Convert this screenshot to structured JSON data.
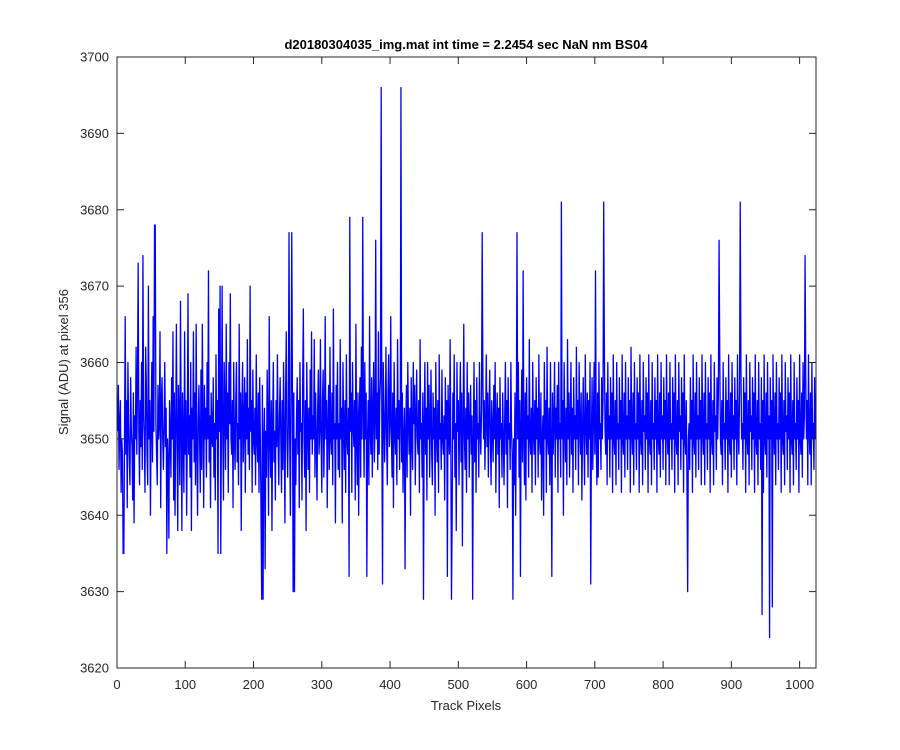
{
  "chart_data": {
    "type": "line",
    "title": "d20180304035_img.mat int time = 2.2454 sec  NaN nm BS04",
    "xlabel": "Track Pixels",
    "ylabel": "Signal (ADU) at pixel 356",
    "xlim": [
      0,
      1024
    ],
    "ylim": [
      3620,
      3700
    ],
    "xticks": [
      0,
      100,
      200,
      300,
      400,
      500,
      600,
      700,
      800,
      900,
      1000
    ],
    "yticks": [
      3620,
      3630,
      3640,
      3650,
      3660,
      3670,
      3680,
      3690,
      3700
    ],
    "grid": false,
    "legend": "none",
    "line_color": "#0000ff",
    "series": [
      {
        "x_start": 1,
        "x_step": 1,
        "noise_level": 3651.5,
        "values": [
          3651,
          3657,
          3646,
          3652,
          3655,
          3643,
          3650,
          3648,
          3654,
          3635,
          3650,
          3666,
          3648,
          3655,
          3641,
          3660,
          3652,
          3647,
          3644,
          3658,
          3651,
          3649,
          3642,
          3656,
          3639,
          3653,
          3650,
          3662,
          3648,
          3657,
          3673,
          3651,
          3644,
          3655,
          3649,
          3660,
          3646,
          3674,
          3653,
          3650,
          3643,
          3662,
          3657,
          3648,
          3644,
          3670,
          3650,
          3655,
          3640,
          3652,
          3660,
          3647,
          3666,
          3651,
          3655,
          3678,
          3652,
          3648,
          3644,
          3657,
          3650,
          3652,
          3664,
          3641,
          3655,
          3658,
          3650,
          3646,
          3652,
          3660,
          3649,
          3654,
          3635,
          3650,
          3647,
          3637,
          3655,
          3651,
          3645,
          3658,
          3650,
          3664,
          3642,
          3656,
          3640,
          3651,
          3665,
          3650,
          3638,
          3657,
          3653,
          3644,
          3668,
          3652,
          3638,
          3656,
          3650,
          3643,
          3664,
          3648,
          3655,
          3640,
          3651,
          3669,
          3648,
          3653,
          3645,
          3660,
          3638,
          3654,
          3650,
          3664,
          3647,
          3656,
          3644,
          3665,
          3649,
          3640,
          3652,
          3657,
          3650,
          3643,
          3659,
          3646,
          3665,
          3652,
          3641,
          3657,
          3650,
          3654,
          3645,
          3660,
          3650,
          3672,
          3647,
          3653,
          3641,
          3656,
          3650,
          3649,
          3658,
          3645,
          3652,
          3642,
          3661,
          3650,
          3655,
          3635,
          3667,
          3651,
          3670,
          3635,
          3652,
          3670,
          3650,
          3642,
          3660,
          3654,
          3646,
          3665,
          3650,
          3656,
          3643,
          3660,
          3652,
          3669,
          3650,
          3648,
          3655,
          3641,
          3660,
          3650,
          3646,
          3655,
          3660,
          3647,
          3652,
          3644,
          3665,
          3650,
          3656,
          3638,
          3654,
          3660,
          3647,
          3652,
          3658,
          3643,
          3656,
          3650,
          3663,
          3648,
          3654,
          3646,
          3670,
          3651,
          3655,
          3643,
          3659,
          3650,
          3648,
          3654,
          3644,
          3661,
          3650,
          3647,
          3656,
          3643,
          3658,
          3650,
          3640,
          3653,
          3657,
          3629,
          3650,
          3654,
          3633,
          3651,
          3645,
          3659,
          3652,
          3640,
          3666,
          3650,
          3645,
          3655,
          3638,
          3652,
          3660,
          3647,
          3651,
          3642,
          3655,
          3649,
          3661,
          3650,
          3644,
          3653,
          3658,
          3650,
          3643,
          3655,
          3646,
          3660,
          3651,
          3639,
          3656,
          3664,
          3650,
          3645,
          3652,
          3677,
          3650,
          3640,
          3655,
          3648,
          3657,
          3630,
          3656,
          3666,
          3650,
          3644,
          3653,
          3658,
          3648,
          3655,
          3641,
          3660,
          3651,
          3652,
          3642,
          3657,
          3667,
          3650,
          3645,
          3655,
          3638,
          3660,
          3652,
          3646,
          3654,
          3643,
          3659,
          3650,
          3664,
          3648,
          3653,
          3650,
          3663,
          3645,
          3656,
          3650,
          3642,
          3654,
          3659,
          3648,
          3651,
          3663,
          3650,
          3643,
          3655,
          3659,
          3645,
          3652,
          3666,
          3650,
          3655,
          3641,
          3652,
          3657,
          3646,
          3662,
          3650,
          3648,
          3656,
          3644,
          3667,
          3650,
          3652,
          3639,
          3657,
          3650,
          3660,
          3646,
          3652,
          3645,
          3663,
          3650,
          3654,
          3639,
          3660,
          3652,
          3646,
          3655,
          3643,
          3661,
          3650,
          3648,
          3654,
          3632,
          3679,
          3651,
          3656,
          3643,
          3660,
          3652,
          3649,
          3655,
          3642,
          3665,
          3650,
          3644,
          3656,
          3640,
          3653,
          3658,
          3645,
          3662,
          3650,
          3648,
          3654,
          3645,
          3660,
          3650,
          3656,
          3632,
          3650,
          3655,
          3644,
          3666,
          3651,
          3648,
          3658,
          3645,
          3654,
          3660,
          3647,
          3652,
          3676,
          3650,
          3656,
          3646,
          3664,
          3648,
          3655,
          3658,
          3696,
          3650,
          3631,
          3660,
          3654,
          3647,
          3652,
          3662,
          3650,
          3644,
          3656,
          3661,
          3649,
          3652,
          3666,
          3650,
          3645,
          3656,
          3641,
          3660,
          3651,
          3648,
          3654,
          3644,
          3663,
          3650,
          3655,
          3646,
          3652,
          3660,
          3647,
          3656,
          3643,
          3650,
          3654,
          3633,
          3651,
          3657,
          3645,
          3660,
          3652,
          3648,
          3654,
          3640,
          3658,
          3650,
          3646,
          3660,
          3652,
          3657,
          3644,
          3653,
          3659,
          3650,
          3648,
          3655,
          3643,
          3663,
          3650,
          3652,
          3645,
          3656,
          3629,
          3652,
          3660,
          3648,
          3654,
          3642,
          3660,
          3650,
          3657,
          3645,
          3652,
          3659,
          3648,
          3644,
          3656,
          3650,
          3654,
          3640,
          3660,
          3651,
          3647,
          3655,
          3643,
          3661,
          3650,
          3652,
          3646,
          3659,
          3650,
          3648,
          3653,
          3642,
          3658,
          3650,
          3655,
          3632,
          3657,
          3651,
          3648,
          3663,
          3650,
          3654,
          3640,
          3656,
          3650,
          3661,
          3645,
          3652,
          3638,
          3660,
          3651,
          3655,
          3644,
          3653,
          3660,
          3647,
          3656,
          3636,
          3651,
          3665,
          3650,
          3646,
          3654,
          3643,
          3660,
          3650,
          3656,
          3645,
          3652,
          3657,
          3648,
          3653,
          3629,
          3650,
          3660,
          3647,
          3655,
          3643,
          3658,
          3650,
          3652,
          3645,
          3660,
          3651,
          3648,
          3654,
          3642,
          3658,
          3650,
          3655,
          3646,
          3652,
          3661,
          3649,
          3656,
          3645,
          3653,
          3659,
          3650,
          3644,
          3655,
          3651,
          3647,
          3657,
          3650,
          3660,
          3643,
          3652,
          3656,
          3648,
          3654,
          3641,
          3658,
          3650,
          3652,
          3645,
          3656,
          3650,
          3644,
          3653,
          3660,
          3648,
          3655,
          3641,
          3658,
          3650,
          3652,
          3646,
          3660,
          3651,
          3648,
          3665,
          3650,
          3644,
          3656,
          3640,
          3652,
          3677,
          3650,
          3660,
          3645,
          3655,
          3632,
          3652,
          3659,
          3647,
          3672,
          3650,
          3644,
          3656,
          3642,
          3658,
          3650,
          3653,
          3645,
          3663,
          3650,
          3648,
          3654,
          3643,
          3660,
          3651,
          3648,
          3655,
          3644,
          3658,
          3650,
          3654,
          3645,
          3661,
          3650,
          3648,
          3656,
          3642,
          3650,
          3653,
          3640,
          3660,
          3650,
          3655,
          3643,
          3662,
          3650,
          3648,
          3654,
          3644,
          3660,
          3650,
          3632,
          3656,
          3648,
          3652,
          3660,
          3645,
          3654,
          3650,
          3657,
          3643,
          3660,
          3650,
          3652,
          3645,
          3681,
          3650,
          3655,
          3640,
          3660,
          3652,
          3647,
          3654,
          3644,
          3663,
          3650,
          3656,
          3645,
          3652,
          3660,
          3648,
          3654,
          3643,
          3658,
          3650,
          3653,
          3646,
          3662,
          3650,
          3655,
          3644,
          3660,
          3652,
          3648,
          3656,
          3642,
          3651,
          3658,
          3650,
          3644,
          3661,
          3652,
          3648,
          3656,
          3645,
          3655,
          3650,
          3660,
          3631,
          3650,
          3658,
          3646,
          3653,
          3660,
          3648,
          3672,
          3650,
          3644,
          3656,
          3645,
          3660,
          3650,
          3652,
          3646,
          3658,
          3650,
          3655,
          3643,
          3661,
          3651,
          3648,
          3656,
          3644,
          3660,
          3650,
          3653,
          3645,
          3658,
          3650,
          3656,
          3643,
          3661,
          3650,
          3648,
          3655,
          3644,
          3660,
          3650,
          3652,
          3646,
          3658,
          3650,
          3655,
          3643,
          3661,
          3650,
          3648,
          3656,
          3645,
          3660,
          3650,
          3653,
          3646,
          3658,
          3650,
          3655,
          3643,
          3662,
          3651,
          3648,
          3656,
          3644,
          3660,
          3650,
          3652,
          3646,
          3658,
          3650,
          3656,
          3643,
          3661,
          3650,
          3648,
          3655,
          3644,
          3660,
          3651,
          3653,
          3646,
          3658,
          3650,
          3656,
          3643,
          3661,
          3650,
          3648,
          3655,
          3644,
          3660,
          3650,
          3652,
          3646,
          3658,
          3650,
          3655,
          3643,
          3661,
          3650,
          3648,
          3656,
          3645,
          3660,
          3650,
          3653,
          3646,
          3658,
          3650,
          3655,
          3644,
          3661,
          3651,
          3648,
          3656,
          3644,
          3660,
          3650,
          3652,
          3646,
          3658,
          3650,
          3656,
          3643,
          3661,
          3650,
          3648,
          3655,
          3644,
          3660,
          3651,
          3653,
          3646,
          3658,
          3650,
          3656,
          3643,
          3661,
          3650,
          3648,
          3655,
          3644,
          3660,
          3650,
          3652,
          3646,
          3658,
          3650,
          3655,
          3643,
          3661,
          3650,
          3648,
          3656,
          3645,
          3660,
          3650,
          3653,
          3646,
          3658,
          3650,
          3655,
          3644,
          3661,
          3651,
          3648,
          3656,
          3644,
          3660,
          3650,
          3652,
          3646,
          3658,
          3650,
          3656,
          3643,
          3661,
          3650,
          3648,
          3655,
          3644,
          3660,
          3651,
          3653,
          3646,
          3658,
          3650,
          3656,
          3643,
          3661,
          3650,
          3648,
          3655,
          3644,
          3660,
          3650,
          3652,
          3646,
          3658,
          3650,
          3655,
          3643,
          3661,
          3650,
          3648,
          3656,
          3645,
          3660,
          3650,
          3653,
          3646,
          3658,
          3650,
          3655,
          3644,
          3661,
          3651,
          3648,
          3656,
          3644,
          3660,
          3650,
          3652,
          3646,
          3658,
          3650,
          3656,
          3643,
          3661,
          3650,
          3648,
          3655,
          3644,
          3660,
          3651,
          3653,
          3646,
          3658,
          3650,
          3656,
          3643,
          3661,
          3650,
          3648,
          3655,
          3644,
          3660,
          3650,
          3652,
          3646,
          3658,
          3650,
          3655,
          3643,
          3661,
          3650,
          3648,
          3656,
          3645,
          3660,
          3650,
          3653,
          3646,
          3658,
          3650,
          3655,
          3644,
          3661,
          3651,
          3648,
          3656,
          3644,
          3660,
          3650,
          3652,
          3646,
          3658,
          3650,
          3656,
          3643,
          3661,
          3650,
          3648,
          3655,
          3644,
          3660,
          3651,
          3653,
          3646,
          3658,
          3650,
          3656,
          3643,
          3661,
          3650,
          3648,
          3655,
          3644,
          3660,
          3650,
          3652,
          3646,
          3658,
          3650,
          3655,
          3643,
          3661,
          3650,
          3648,
          3656,
          3645,
          3660,
          3650,
          3653,
          3646,
          3658,
          3650,
          3655,
          3644,
          3661,
          3651,
          3648,
          3656,
          3644,
          3660,
          3650,
          3652,
          3646,
          3658,
          3650,
          3656,
          3643,
          3661,
          3650,
          3648,
          3655,
          3644,
          3660,
          3651,
          3653,
          3646,
          3658,
          3650,
          3656,
          3643,
          3661,
          3650,
          3648,
          3655,
          3644,
          3660,
          3650,
          3652,
          3646,
          3658,
          3650,
          3655,
          3643,
          3661,
          3650,
          3648,
          3656,
          3645,
          3660,
          3650,
          3653,
          3646,
          3658,
          3650,
          3655,
          3644,
          3661,
          3651,
          3648,
          3656,
          3644,
          3660,
          3650,
          3652,
          3646,
          3658,
          3650,
          3656,
          3643,
          3661,
          3650,
          3648,
          3655,
          3644,
          3660
        ]
      }
    ],
    "highlights": [
      {
        "x": 416,
        "y": 3696
      },
      {
        "x": 360,
        "y": 3679
      },
      {
        "x": 713,
        "y": 3681
      },
      {
        "x": 913,
        "y": 3681
      },
      {
        "x": 55,
        "y": 3678
      },
      {
        "x": 256,
        "y": 3677
      },
      {
        "x": 535,
        "y": 3677
      },
      {
        "x": 882,
        "y": 3676
      },
      {
        "x": 1008,
        "y": 3674
      },
      {
        "x": 212,
        "y": 3629
      },
      {
        "x": 260,
        "y": 3630
      },
      {
        "x": 490,
        "y": 3629
      },
      {
        "x": 580,
        "y": 3629
      },
      {
        "x": 836,
        "y": 3630
      },
      {
        "x": 945,
        "y": 3627
      },
      {
        "x": 956,
        "y": 3624
      },
      {
        "x": 960,
        "y": 3628
      },
      {
        "x": 9,
        "y": 3635
      }
    ]
  }
}
